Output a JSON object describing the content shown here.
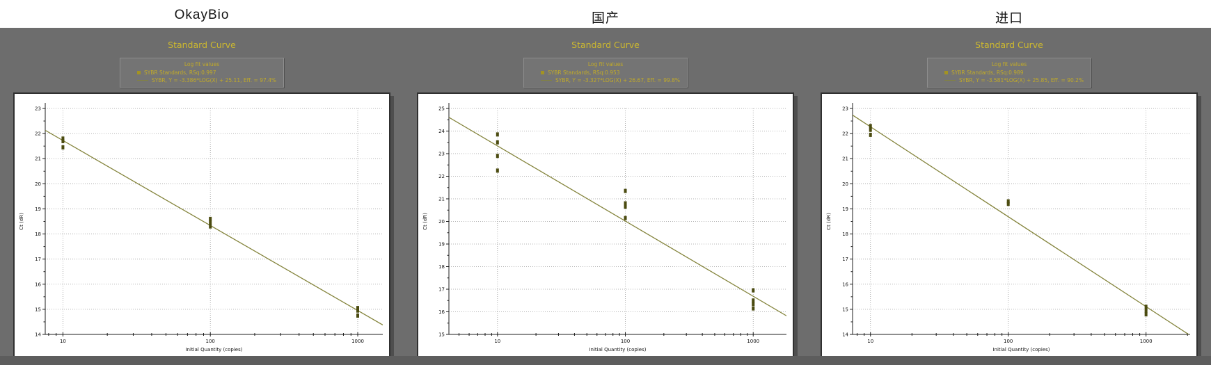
{
  "header": {
    "titles": [
      "OkayBio",
      "国产",
      "进口"
    ]
  },
  "colors": {
    "background": "#6d6d6d",
    "header_background": "#ffffff",
    "accent_yellow": "#cdb92f",
    "legend_text": "#c2ab28",
    "fit_line": "#84843c",
    "data_point": "#4b4b10"
  },
  "chart_data": [
    {
      "type": "scatter",
      "title": "Standard Curve",
      "xlabel": "Initial Quantity (copies)",
      "ylabel": "Ct (dR)",
      "x_scale": "log",
      "xlim_log": [
        0.88,
        3.17
      ],
      "ylim": [
        14,
        23
      ],
      "x_ticks": [
        10,
        100,
        1000
      ],
      "grid": true,
      "legend": {
        "header": "Log fit values",
        "series": "SYBR Standards, RSq:0.997",
        "equation": "SYBR, Y = -3.386*LOG(X) + 25.11, Eff. = 97.4%"
      },
      "fit": {
        "slope": -3.386,
        "intercept": 25.11,
        "rsq": 0.997,
        "efficiency_pct": 97.4
      },
      "series": [
        {
          "name": "SYBR Standards",
          "points": [
            [
              10,
              21.8
            ],
            [
              10,
              21.7
            ],
            [
              10,
              21.45
            ],
            [
              100,
              18.6
            ],
            [
              100,
              18.45
            ],
            [
              100,
              18.3
            ],
            [
              1000,
              15.05
            ],
            [
              1000,
              14.95
            ],
            [
              1000,
              14.75
            ]
          ]
        }
      ]
    },
    {
      "type": "scatter",
      "title": "Standard Curve",
      "xlabel": "Initial Quantity (copies)",
      "ylabel": "Ct (dR)",
      "x_scale": "log",
      "xlim_log": [
        0.62,
        3.26
      ],
      "ylim": [
        15,
        25
      ],
      "x_ticks": [
        10,
        100,
        1000
      ],
      "grid": true,
      "legend": {
        "header": "Log fit values",
        "series": "SYBR Standards, RSq:0.953",
        "equation": "SYBR, Y = -3.327*LOG(X) + 26.67, Eff. = 99.8%"
      },
      "fit": {
        "slope": -3.327,
        "intercept": 26.67,
        "rsq": 0.953,
        "efficiency_pct": 99.8
      },
      "series": [
        {
          "name": "SYBR Standards",
          "points": [
            [
              10,
              23.85
            ],
            [
              10,
              23.5
            ],
            [
              10,
              22.9
            ],
            [
              10,
              22.25
            ],
            [
              100,
              21.35
            ],
            [
              100,
              20.8
            ],
            [
              100,
              20.65
            ],
            [
              100,
              20.15
            ],
            [
              1000,
              16.95
            ],
            [
              1000,
              16.5
            ],
            [
              1000,
              16.35
            ],
            [
              1000,
              16.15
            ]
          ]
        }
      ]
    },
    {
      "type": "scatter",
      "title": "Standard Curve",
      "xlabel": "Initial Quantity (copies)",
      "ylabel": "Ct (dR)",
      "x_scale": "log",
      "xlim_log": [
        0.87,
        3.32
      ],
      "ylim": [
        14,
        23
      ],
      "x_ticks": [
        10,
        100,
        1000
      ],
      "grid": true,
      "legend": {
        "header": "Log fit values",
        "series": "SYBR Standards, RSq:0.989",
        "equation": "SYBR, Y = -3.581*LOG(X) + 25.85, Eff. = 90.2%"
      },
      "fit": {
        "slope": -3.581,
        "intercept": 25.85,
        "rsq": 0.989,
        "efficiency_pct": 90.2
      },
      "series": [
        {
          "name": "SYBR Standards",
          "points": [
            [
              10,
              22.3
            ],
            [
              10,
              22.15
            ],
            [
              10,
              21.95
            ],
            [
              100,
              19.3
            ],
            [
              100,
              19.2
            ],
            [
              1000,
              15.1
            ],
            [
              1000,
              14.95
            ],
            [
              1000,
              14.8
            ]
          ]
        }
      ]
    }
  ]
}
